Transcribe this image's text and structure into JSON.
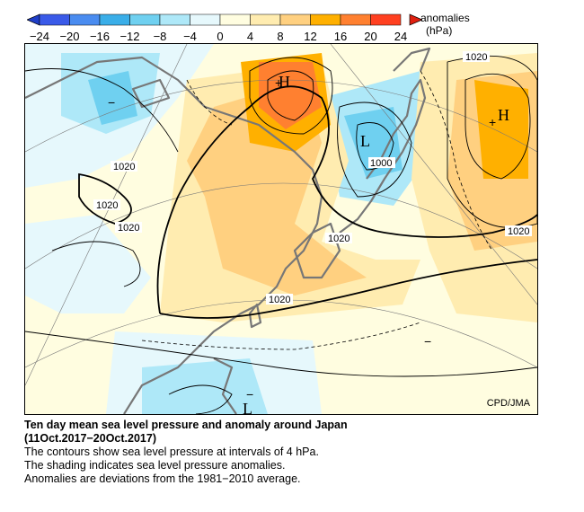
{
  "legend": {
    "title_line1": "anomalies",
    "title_line2": "(hPa)",
    "ticks": [
      "−24",
      "−20",
      "−16",
      "−12",
      "−8",
      "−4",
      "0",
      "4",
      "8",
      "12",
      "16",
      "20",
      "24"
    ],
    "colors": [
      "#3a5ae8",
      "#4a8cf0",
      "#3aaee8",
      "#6fd0f0",
      "#aee8f8",
      "#e6f8fc",
      "#fffde0",
      "#ffecb0",
      "#ffd080",
      "#ffb000",
      "#ff8030",
      "#ff4020"
    ]
  },
  "map": {
    "credit": "CPD/JMA",
    "isobar_labels": [
      "1020",
      "1020",
      "1020",
      "1020",
      "1000",
      "1020",
      "1020",
      "1020"
    ],
    "centers": [
      {
        "symbol": "H"
      },
      {
        "symbol": "H"
      },
      {
        "symbol": "L"
      },
      {
        "symbol": "L"
      }
    ],
    "anomaly_minus_signs": [
      "−",
      "−",
      "−"
    ]
  },
  "caption": {
    "title": "Ten day mean sea level pressure and anomaly around Japan",
    "period": "(11Oct.2017−20Oct.2017)",
    "line1": "The contours show sea level pressure at intervals of 4 hPa.",
    "line2": "The shading indicates sea level pressure anomalies.",
    "line3": "Anomalies are deviations from the 1981−2010 average."
  }
}
